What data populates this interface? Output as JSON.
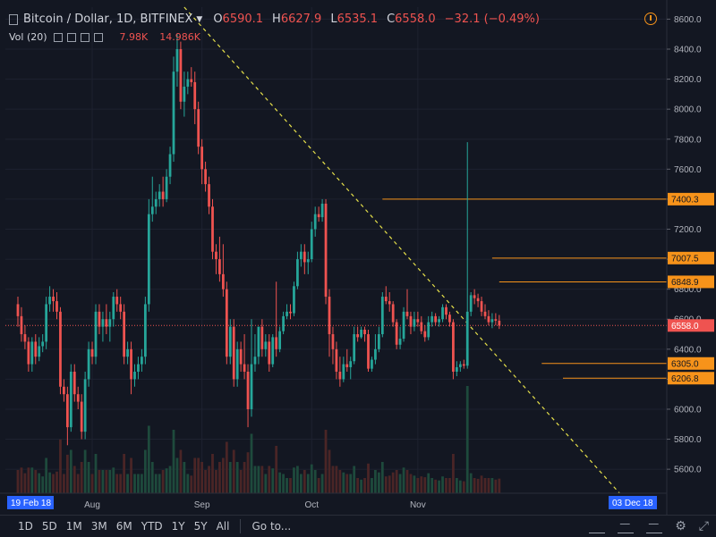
{
  "header": {
    "title": "Bitcoin / Dollar, 1D, BITFINEX",
    "ohlc": [
      {
        "k": "O",
        "v": "6590.1"
      },
      {
        "k": "H",
        "v": "6627.9"
      },
      {
        "k": "L",
        "v": "6535.1"
      },
      {
        "k": "C",
        "v": "6558.0"
      }
    ],
    "change": "−32.1 (−0.49%)"
  },
  "volume": {
    "label": "Vol (20)",
    "value1": "7.98K",
    "value2": "14.986K"
  },
  "toolbar": {
    "timeframes": [
      "1D",
      "5D",
      "1M",
      "3M",
      "6M",
      "YTD",
      "1Y",
      "5Y",
      "All"
    ],
    "goto": "Go to...",
    "icons": [
      "crop-icon",
      "line-icon",
      "dash-icon",
      "settings-icon",
      "fullscreen-icon"
    ]
  },
  "colors": {
    "background": "#131722",
    "up": "#26a69a",
    "down": "#ef5350",
    "level": "#f7931a",
    "trendline": "#e6e04a",
    "volume_up": "#1e4a3c",
    "volume_down": "#4a2526"
  },
  "chart_data": {
    "type": "candlestick",
    "title": "Bitcoin / Dollar, 1D, BITFINEX",
    "ylim": [
      5440,
      8680
    ],
    "yticks": [
      5600,
      5800,
      6000,
      6200,
      6400,
      6600,
      6800,
      7000,
      7200,
      7400,
      7600,
      7800,
      8000,
      8200,
      8400,
      8600
    ],
    "ytick_labels": [
      "5600.0",
      "5800.0",
      "6000.0",
      "6200.0",
      "6400.0",
      "6600.0",
      "6800.0",
      "7000.0",
      "7200.0",
      "7400.0",
      "7600.0",
      "7800.0",
      "8000.0",
      "8200.0",
      "8400.0",
      "8600.0"
    ],
    "x_labels": [
      {
        "date": "2018-07-01",
        "label": "Aug"
      },
      {
        "date": "2018-08-01",
        "label": "Sep"
      },
      {
        "date": "2018-09-01",
        "label": "Oct"
      },
      {
        "date": "2018-10-01",
        "label": "Nov"
      }
    ],
    "x_start_label": "19 Feb 18",
    "x_end_label": "03 Dec 18",
    "last_price": "6558.0",
    "horizontal_levels": [
      {
        "price": 7400.3,
        "label": "7400.3",
        "from_date": "2018-09-21"
      },
      {
        "price": 7007.5,
        "label": "7007.5",
        "from_date": "2018-10-22"
      },
      {
        "price": 6848.9,
        "label": "6848.9",
        "from_date": "2018-10-24"
      },
      {
        "price": 6305.0,
        "label": "6305.0",
        "from_date": "2018-11-05"
      },
      {
        "price": 6206.8,
        "label": "6206.8",
        "from_date": "2018-11-11"
      }
    ],
    "trendline": {
      "from": {
        "date": "2018-07-27",
        "price": 8680
      },
      "to": {
        "date": "2018-11-27",
        "price": 5440
      }
    },
    "candles": [
      {
        "date": "2018-06-10",
        "o": 6700,
        "h": 6750,
        "l": 6550,
        "c": 6620
      },
      {
        "date": "2018-06-11",
        "o": 6620,
        "h": 6680,
        "l": 6450,
        "c": 6500
      },
      {
        "date": "2018-06-12",
        "o": 6500,
        "h": 6560,
        "l": 6400,
        "c": 6450
      },
      {
        "date": "2018-06-13",
        "o": 6450,
        "h": 6480,
        "l": 6250,
        "c": 6300
      },
      {
        "date": "2018-06-14",
        "o": 6300,
        "h": 6480,
        "l": 6250,
        "c": 6450
      },
      {
        "date": "2018-06-15",
        "o": 6450,
        "h": 6500,
        "l": 6300,
        "c": 6350
      },
      {
        "date": "2018-06-16",
        "o": 6350,
        "h": 6480,
        "l": 6320,
        "c": 6420
      },
      {
        "date": "2018-06-17",
        "o": 6420,
        "h": 6500,
        "l": 6380,
        "c": 6450
      },
      {
        "date": "2018-06-18",
        "o": 6450,
        "h": 6750,
        "l": 6400,
        "c": 6700
      },
      {
        "date": "2018-06-19",
        "o": 6700,
        "h": 6820,
        "l": 6650,
        "c": 6750
      },
      {
        "date": "2018-06-20",
        "o": 6750,
        "h": 6800,
        "l": 6650,
        "c": 6720
      },
      {
        "date": "2018-06-21",
        "o": 6720,
        "h": 6780,
        "l": 6600,
        "c": 6650
      },
      {
        "date": "2018-06-22",
        "o": 6650,
        "h": 6680,
        "l": 6100,
        "c": 6150
      },
      {
        "date": "2018-06-23",
        "o": 6150,
        "h": 6200,
        "l": 6050,
        "c": 6100
      },
      {
        "date": "2018-06-24",
        "o": 6100,
        "h": 6150,
        "l": 5760,
        "c": 5880
      },
      {
        "date": "2018-06-25",
        "o": 5880,
        "h": 6300,
        "l": 5850,
        "c": 6250
      },
      {
        "date": "2018-06-26",
        "o": 6250,
        "h": 6300,
        "l": 6050,
        "c": 6100
      },
      {
        "date": "2018-06-27",
        "o": 6100,
        "h": 6150,
        "l": 6000,
        "c": 6050
      },
      {
        "date": "2018-06-28",
        "o": 6050,
        "h": 6100,
        "l": 5800,
        "c": 5850
      },
      {
        "date": "2018-06-29",
        "o": 5850,
        "h": 6250,
        "l": 5800,
        "c": 6200
      },
      {
        "date": "2018-06-30",
        "o": 6200,
        "h": 6450,
        "l": 6150,
        "c": 6400
      },
      {
        "date": "2018-07-01",
        "o": 6400,
        "h": 6450,
        "l": 6300,
        "c": 6350
      },
      {
        "date": "2018-07-02",
        "o": 6350,
        "h": 6700,
        "l": 6300,
        "c": 6650
      },
      {
        "date": "2018-07-03",
        "o": 6650,
        "h": 6700,
        "l": 6500,
        "c": 6550
      },
      {
        "date": "2018-07-04",
        "o": 6550,
        "h": 6650,
        "l": 6450,
        "c": 6600
      },
      {
        "date": "2018-07-05",
        "o": 6600,
        "h": 6700,
        "l": 6500,
        "c": 6550
      },
      {
        "date": "2018-07-06",
        "o": 6550,
        "h": 6650,
        "l": 6450,
        "c": 6600
      },
      {
        "date": "2018-07-07",
        "o": 6600,
        "h": 6780,
        "l": 6550,
        "c": 6750
      },
      {
        "date": "2018-07-08",
        "o": 6750,
        "h": 6800,
        "l": 6650,
        "c": 6700
      },
      {
        "date": "2018-07-09",
        "o": 6700,
        "h": 6750,
        "l": 6600,
        "c": 6650
      },
      {
        "date": "2018-07-10",
        "o": 6650,
        "h": 6700,
        "l": 6300,
        "c": 6350
      },
      {
        "date": "2018-07-11",
        "o": 6350,
        "h": 6450,
        "l": 6300,
        "c": 6400
      },
      {
        "date": "2018-07-12",
        "o": 6400,
        "h": 6450,
        "l": 6100,
        "c": 6200
      },
      {
        "date": "2018-07-13",
        "o": 6200,
        "h": 6300,
        "l": 6150,
        "c": 6250
      },
      {
        "date": "2018-07-14",
        "o": 6250,
        "h": 6350,
        "l": 6200,
        "c": 6300
      },
      {
        "date": "2018-07-15",
        "o": 6300,
        "h": 6400,
        "l": 6250,
        "c": 6350
      },
      {
        "date": "2018-07-16",
        "o": 6350,
        "h": 6750,
        "l": 6300,
        "c": 6700
      },
      {
        "date": "2018-07-17",
        "o": 6700,
        "h": 7400,
        "l": 6650,
        "c": 7300
      },
      {
        "date": "2018-07-18",
        "o": 7300,
        "h": 7550,
        "l": 7250,
        "c": 7350
      },
      {
        "date": "2018-07-19",
        "o": 7350,
        "h": 7450,
        "l": 7300,
        "c": 7400
      },
      {
        "date": "2018-07-20",
        "o": 7400,
        "h": 7500,
        "l": 7350,
        "c": 7450
      },
      {
        "date": "2018-07-21",
        "o": 7450,
        "h": 7550,
        "l": 7350,
        "c": 7400
      },
      {
        "date": "2018-07-22",
        "o": 7400,
        "h": 7600,
        "l": 7380,
        "c": 7550
      },
      {
        "date": "2018-07-23",
        "o": 7550,
        "h": 7750,
        "l": 7500,
        "c": 7700
      },
      {
        "date": "2018-07-24",
        "o": 7700,
        "h": 8350,
        "l": 7650,
        "c": 8250
      },
      {
        "date": "2018-07-25",
        "o": 8250,
        "h": 8500,
        "l": 8150,
        "c": 8400
      },
      {
        "date": "2018-07-26",
        "o": 8400,
        "h": 8450,
        "l": 8000,
        "c": 8050
      },
      {
        "date": "2018-07-27",
        "o": 8050,
        "h": 8250,
        "l": 7950,
        "c": 8150
      },
      {
        "date": "2018-07-28",
        "o": 8150,
        "h": 8250,
        "l": 8100,
        "c": 8200
      },
      {
        "date": "2018-07-29",
        "o": 8200,
        "h": 8280,
        "l": 8150,
        "c": 8180
      },
      {
        "date": "2018-07-30",
        "o": 8180,
        "h": 8250,
        "l": 7900,
        "c": 8000
      },
      {
        "date": "2018-07-31",
        "o": 8000,
        "h": 8050,
        "l": 7700,
        "c": 7750
      },
      {
        "date": "2018-08-01",
        "o": 7750,
        "h": 7800,
        "l": 7500,
        "c": 7600
      },
      {
        "date": "2018-08-02",
        "o": 7600,
        "h": 7650,
        "l": 7450,
        "c": 7500
      },
      {
        "date": "2018-08-03",
        "o": 7500,
        "h": 7550,
        "l": 7300,
        "c": 7350
      },
      {
        "date": "2018-08-04",
        "o": 7350,
        "h": 7400,
        "l": 7000,
        "c": 7050
      },
      {
        "date": "2018-08-05",
        "o": 7050,
        "h": 7100,
        "l": 6900,
        "c": 7000
      },
      {
        "date": "2018-08-06",
        "o": 7000,
        "h": 7150,
        "l": 6850,
        "c": 6900
      },
      {
        "date": "2018-08-07",
        "o": 6900,
        "h": 7100,
        "l": 6750,
        "c": 6800
      },
      {
        "date": "2018-08-08",
        "o": 6800,
        "h": 6850,
        "l": 6300,
        "c": 6350
      },
      {
        "date": "2018-08-09",
        "o": 6350,
        "h": 6600,
        "l": 6300,
        "c": 6550
      },
      {
        "date": "2018-08-10",
        "o": 6550,
        "h": 6600,
        "l": 6150,
        "c": 6200
      },
      {
        "date": "2018-08-11",
        "o": 6200,
        "h": 6450,
        "l": 6150,
        "c": 6400
      },
      {
        "date": "2018-08-12",
        "o": 6400,
        "h": 6450,
        "l": 6250,
        "c": 6300
      },
      {
        "date": "2018-08-13",
        "o": 6300,
        "h": 6500,
        "l": 6200,
        "c": 6250
      },
      {
        "date": "2018-08-14",
        "o": 6250,
        "h": 6300,
        "l": 5880,
        "c": 6000
      },
      {
        "date": "2018-08-15",
        "o": 6000,
        "h": 6600,
        "l": 5950,
        "c": 6300
      },
      {
        "date": "2018-08-16",
        "o": 6300,
        "h": 6500,
        "l": 6250,
        "c": 6350
      },
      {
        "date": "2018-08-17",
        "o": 6350,
        "h": 6550,
        "l": 6300,
        "c": 6550
      },
      {
        "date": "2018-08-18",
        "o": 6550,
        "h": 6600,
        "l": 6350,
        "c": 6400
      },
      {
        "date": "2018-08-19",
        "o": 6400,
        "h": 6500,
        "l": 6350,
        "c": 6450
      },
      {
        "date": "2018-08-20",
        "o": 6450,
        "h": 6500,
        "l": 6250,
        "c": 6300
      },
      {
        "date": "2018-08-21",
        "o": 6300,
        "h": 6500,
        "l": 6280,
        "c": 6480
      },
      {
        "date": "2018-08-22",
        "o": 6480,
        "h": 6850,
        "l": 6350,
        "c": 6400
      },
      {
        "date": "2018-08-23",
        "o": 6400,
        "h": 6550,
        "l": 6380,
        "c": 6520
      },
      {
        "date": "2018-08-24",
        "o": 6520,
        "h": 6650,
        "l": 6500,
        "c": 6620
      },
      {
        "date": "2018-08-25",
        "o": 6620,
        "h": 6700,
        "l": 6600,
        "c": 6650
      },
      {
        "date": "2018-08-26",
        "o": 6650,
        "h": 6700,
        "l": 6600,
        "c": 6640
      },
      {
        "date": "2018-08-27",
        "o": 6640,
        "h": 6850,
        "l": 6620,
        "c": 6820
      },
      {
        "date": "2018-08-28",
        "o": 6820,
        "h": 7050,
        "l": 6800,
        "c": 7000
      },
      {
        "date": "2018-08-29",
        "o": 7000,
        "h": 7100,
        "l": 6950,
        "c": 7050
      },
      {
        "date": "2018-08-30",
        "o": 7050,
        "h": 7100,
        "l": 6900,
        "c": 6980
      },
      {
        "date": "2018-08-31",
        "o": 6980,
        "h": 7050,
        "l": 6900,
        "c": 7000
      },
      {
        "date": "2018-09-01",
        "o": 7000,
        "h": 7250,
        "l": 6980,
        "c": 7200
      },
      {
        "date": "2018-09-02",
        "o": 7200,
        "h": 7350,
        "l": 7150,
        "c": 7300
      },
      {
        "date": "2018-09-03",
        "o": 7300,
        "h": 7350,
        "l": 7250,
        "c": 7280
      },
      {
        "date": "2018-09-04",
        "o": 7280,
        "h": 7400,
        "l": 7250,
        "c": 7370
      },
      {
        "date": "2018-09-05",
        "o": 7370,
        "h": 7400,
        "l": 6700,
        "c": 6750
      },
      {
        "date": "2018-09-06",
        "o": 6750,
        "h": 6800,
        "l": 6350,
        "c": 6500
      },
      {
        "date": "2018-09-07",
        "o": 6500,
        "h": 6550,
        "l": 6300,
        "c": 6400
      },
      {
        "date": "2018-09-08",
        "o": 6400,
        "h": 6450,
        "l": 6200,
        "c": 6250
      },
      {
        "date": "2018-09-09",
        "o": 6250,
        "h": 6350,
        "l": 6150,
        "c": 6200
      },
      {
        "date": "2018-09-10",
        "o": 6200,
        "h": 6350,
        "l": 6180,
        "c": 6300
      },
      {
        "date": "2018-09-11",
        "o": 6300,
        "h": 6400,
        "l": 6250,
        "c": 6280
      },
      {
        "date": "2018-09-12",
        "o": 6280,
        "h": 6350,
        "l": 6200,
        "c": 6320
      },
      {
        "date": "2018-09-13",
        "o": 6320,
        "h": 6550,
        "l": 6300,
        "c": 6500
      },
      {
        "date": "2018-09-14",
        "o": 6500,
        "h": 6550,
        "l": 6450,
        "c": 6480
      },
      {
        "date": "2018-09-15",
        "o": 6480,
        "h": 6550,
        "l": 6470,
        "c": 6530
      },
      {
        "date": "2018-09-16",
        "o": 6530,
        "h": 6550,
        "l": 6450,
        "c": 6500
      },
      {
        "date": "2018-09-17",
        "o": 6500,
        "h": 6530,
        "l": 6250,
        "c": 6270
      },
      {
        "date": "2018-09-18",
        "o": 6270,
        "h": 6350,
        "l": 6250,
        "c": 6330
      },
      {
        "date": "2018-09-19",
        "o": 6330,
        "h": 6500,
        "l": 6300,
        "c": 6400
      },
      {
        "date": "2018-09-20",
        "o": 6400,
        "h": 6550,
        "l": 6380,
        "c": 6500
      },
      {
        "date": "2018-09-21",
        "o": 6500,
        "h": 6780,
        "l": 6480,
        "c": 6750
      },
      {
        "date": "2018-09-22",
        "o": 6750,
        "h": 6820,
        "l": 6700,
        "c": 6720
      },
      {
        "date": "2018-09-23",
        "o": 6720,
        "h": 6780,
        "l": 6650,
        "c": 6700
      },
      {
        "date": "2018-09-24",
        "o": 6700,
        "h": 6720,
        "l": 6550,
        "c": 6580
      },
      {
        "date": "2018-09-25",
        "o": 6580,
        "h": 6600,
        "l": 6400,
        "c": 6430
      },
      {
        "date": "2018-09-26",
        "o": 6430,
        "h": 6550,
        "l": 6400,
        "c": 6470
      },
      {
        "date": "2018-09-27",
        "o": 6470,
        "h": 6680,
        "l": 6450,
        "c": 6650
      },
      {
        "date": "2018-09-28",
        "o": 6650,
        "h": 6800,
        "l": 6600,
        "c": 6620
      },
      {
        "date": "2018-09-29",
        "o": 6620,
        "h": 6650,
        "l": 6500,
        "c": 6550
      },
      {
        "date": "2018-09-30",
        "o": 6550,
        "h": 6650,
        "l": 6520,
        "c": 6600
      },
      {
        "date": "2018-10-01",
        "o": 6600,
        "h": 6650,
        "l": 6550,
        "c": 6580
      },
      {
        "date": "2018-10-02",
        "o": 6580,
        "h": 6620,
        "l": 6500,
        "c": 6520
      },
      {
        "date": "2018-10-03",
        "o": 6520,
        "h": 6560,
        "l": 6450,
        "c": 6480
      },
      {
        "date": "2018-10-04",
        "o": 6480,
        "h": 6620,
        "l": 6460,
        "c": 6580
      },
      {
        "date": "2018-10-05",
        "o": 6580,
        "h": 6650,
        "l": 6550,
        "c": 6620
      },
      {
        "date": "2018-10-06",
        "o": 6620,
        "h": 6640,
        "l": 6560,
        "c": 6580
      },
      {
        "date": "2018-10-07",
        "o": 6580,
        "h": 6620,
        "l": 6550,
        "c": 6600
      },
      {
        "date": "2018-10-08",
        "o": 6600,
        "h": 6700,
        "l": 6580,
        "c": 6680
      },
      {
        "date": "2018-10-09",
        "o": 6680,
        "h": 6700,
        "l": 6600,
        "c": 6630
      },
      {
        "date": "2018-10-10",
        "o": 6630,
        "h": 6650,
        "l": 6550,
        "c": 6580
      },
      {
        "date": "2018-10-11",
        "o": 6580,
        "h": 6600,
        "l": 6200,
        "c": 6250
      },
      {
        "date": "2018-10-12",
        "o": 6250,
        "h": 6320,
        "l": 6220,
        "c": 6280
      },
      {
        "date": "2018-10-13",
        "o": 6280,
        "h": 6320,
        "l": 6250,
        "c": 6300
      },
      {
        "date": "2018-10-14",
        "o": 6300,
        "h": 6330,
        "l": 6270,
        "c": 6290
      },
      {
        "date": "2018-10-15",
        "o": 6290,
        "h": 7780,
        "l": 6270,
        "c": 6650
      },
      {
        "date": "2018-10-16",
        "o": 6650,
        "h": 6780,
        "l": 6620,
        "c": 6760
      },
      {
        "date": "2018-10-17",
        "o": 6760,
        "h": 6800,
        "l": 6700,
        "c": 6740
      },
      {
        "date": "2018-10-18",
        "o": 6740,
        "h": 6770,
        "l": 6680,
        "c": 6720
      },
      {
        "date": "2018-10-19",
        "o": 6720,
        "h": 6750,
        "l": 6620,
        "c": 6650
      },
      {
        "date": "2018-10-20",
        "o": 6650,
        "h": 6700,
        "l": 6600,
        "c": 6620
      },
      {
        "date": "2018-10-21",
        "o": 6620,
        "h": 6660,
        "l": 6560,
        "c": 6580
      },
      {
        "date": "2018-10-22",
        "o": 6580,
        "h": 6640,
        "l": 6540,
        "c": 6600
      },
      {
        "date": "2018-10-23",
        "o": 6600,
        "h": 6640,
        "l": 6560,
        "c": 6590
      },
      {
        "date": "2018-10-24",
        "o": 6590,
        "h": 6628,
        "l": 6535,
        "c": 6558
      }
    ]
  }
}
